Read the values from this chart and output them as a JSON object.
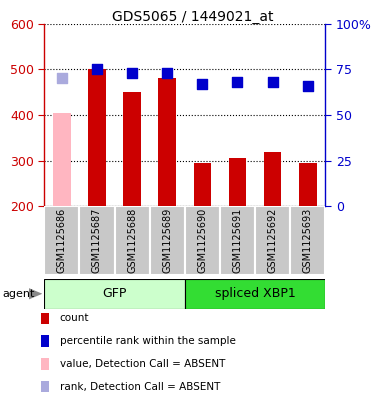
{
  "title": "GDS5065 / 1449021_at",
  "samples": [
    "GSM1125686",
    "GSM1125687",
    "GSM1125688",
    "GSM1125689",
    "GSM1125690",
    "GSM1125691",
    "GSM1125692",
    "GSM1125693"
  ],
  "count_values": [
    null,
    500,
    450,
    480,
    295,
    305,
    320,
    295
  ],
  "count_absent_values": [
    405,
    null,
    null,
    null,
    null,
    null,
    null,
    null
  ],
  "percentile_values": [
    null,
    75,
    73,
    73,
    67,
    68,
    68,
    66
  ],
  "percentile_absent_values": [
    70,
    null,
    null,
    null,
    null,
    null,
    null,
    null
  ],
  "groups": [
    {
      "label": "GFP",
      "start": 0,
      "end": 4,
      "color": "#CCFFCC"
    },
    {
      "label": "spliced XBP1",
      "start": 4,
      "end": 8,
      "color": "#33DD33"
    }
  ],
  "ylim_left": [
    200,
    600
  ],
  "ylim_right": [
    0,
    100
  ],
  "yticks_left": [
    200,
    300,
    400,
    500,
    600
  ],
  "yticks_right": [
    0,
    25,
    50,
    75,
    100
  ],
  "ytick_labels_right": [
    "0",
    "25",
    "50",
    "75",
    "100%"
  ],
  "bar_color": "#CC0000",
  "bar_absent_color": "#FFB6C1",
  "dot_color": "#0000CC",
  "dot_absent_color": "#AAAADD",
  "bar_width": 0.5,
  "dot_size": 55,
  "left_axis_color": "#CC0000",
  "right_axis_color": "#0000CC",
  "bg_color": "#FFFFFF",
  "plot_bg_color": "#FFFFFF",
  "grid_color": "#000000",
  "xlabel_area_color": "#C8C8C8",
  "agent_label": "agent",
  "legend_items": [
    {
      "color": "#CC0000",
      "label": "count"
    },
    {
      "color": "#0000CC",
      "label": "percentile rank within the sample"
    },
    {
      "color": "#FFB6C1",
      "label": "value, Detection Call = ABSENT"
    },
    {
      "color": "#AAAADD",
      "label": "rank, Detection Call = ABSENT"
    }
  ]
}
